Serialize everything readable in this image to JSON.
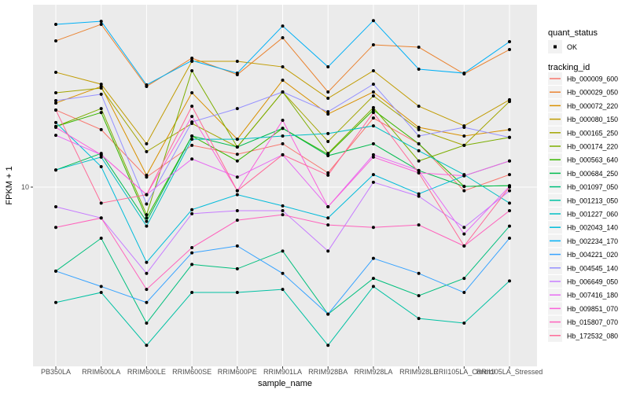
{
  "figure": {
    "background": "#FFFFFF",
    "panel_bg": "#EBEBEB",
    "grid_color": "#FFFFFF",
    "axis_text_color": "#4D4D4D",
    "title_text_color": "#000000",
    "point_color": "#000000"
  },
  "axes": {
    "x_title": "sample_name",
    "y_title": "FPKM + 1",
    "y_tick_labels": [
      "10"
    ],
    "y_tick_values": [
      10
    ]
  },
  "legend": {
    "quant_status_title": "quant_status",
    "quant_status_items": [
      {
        "label": "OK"
      }
    ],
    "tracking_id_title": "tracking_id"
  },
  "chart_data": {
    "type": "line",
    "title": "",
    "xlabel": "sample_name",
    "ylabel": "FPKM + 1",
    "yscale": "log10",
    "ylim": [
      1,
      120
    ],
    "grid": "ggplot-grey, major x per category, major y at 10",
    "legend_position": "right",
    "point_marker": "black dot (quant_status OK)",
    "categories": [
      "PB350LA",
      "RRIM600LA",
      "RRIM600LE",
      "RRIM600SE",
      "RRIM600PE",
      "RRIM901LA",
      "RRIM928BA",
      "RRIM928LA",
      "RRIM928LE",
      "RRII105LA_Control",
      "RRII105LA_Stressed"
    ],
    "series": [
      {
        "name": "Hb_000009_600",
        "color": "#F8766D",
        "values": [
          29.3,
          22.3,
          11.5,
          17.9,
          15.8,
          18.3,
          12.2,
          26.2,
          18.3,
          9.5,
          11.9
        ]
      },
      {
        "name": "Hb_000029_050",
        "color": "#EA8331",
        "values": [
          76.9,
          96.8,
          40.7,
          60.4,
          48.0,
          80.3,
          37.7,
          72.8,
          70.4,
          48.5,
          68.1
        ]
      },
      {
        "name": "Hb_000072_220",
        "color": "#D89000",
        "values": [
          32.3,
          40.7,
          11.8,
          37.3,
          19.5,
          44.4,
          27.7,
          37.7,
          23.0,
          20.4,
          22.3
        ]
      },
      {
        "name": "Hb_000080_150",
        "color": "#C09B00",
        "values": [
          49.6,
          42.0,
          18.3,
          57.8,
          57.8,
          53.5,
          34.5,
          50.7,
          30.9,
          23.5,
          33.8
        ]
      },
      {
        "name": "Hb_000165_250",
        "color": "#A3A500",
        "values": [
          37.3,
          39.8,
          16.4,
          24.3,
          17.5,
          37.7,
          18.9,
          35.7,
          22.3,
          17.9,
          33.0
        ]
      },
      {
        "name": "Hb_000174_220",
        "color": "#7CAE00",
        "values": [
          23.3,
          29.9,
          6.8,
          50.7,
          17.5,
          37.7,
          16.0,
          30.3,
          14.4,
          17.9,
          20.0
        ]
      },
      {
        "name": "Hb_000563_640",
        "color": "#39B600",
        "values": [
          23.3,
          28.3,
          6.5,
          20.4,
          14.4,
          22.7,
          15.8,
          29.3,
          18.3,
          10.1,
          10.2
        ]
      },
      {
        "name": "Hb_000684_250",
        "color": "#00BB4E",
        "values": [
          12.7,
          16.0,
          6.2,
          20.4,
          17.5,
          22.7,
          15.5,
          18.3,
          12.6,
          10.1,
          10.2
        ]
      },
      {
        "name": "Hb_001097_050",
        "color": "#00BF7D",
        "values": [
          3.1,
          4.9,
          1.5,
          3.4,
          3.2,
          4.1,
          1.7,
          2.8,
          2.2,
          2.8,
          5.8
        ]
      },
      {
        "name": "Hb_001213_050",
        "color": "#00C1A3",
        "values": [
          2.0,
          2.3,
          1.1,
          2.3,
          2.3,
          2.4,
          1.1,
          2.5,
          1.6,
          1.5,
          2.7
        ]
      },
      {
        "name": "Hb_001227_060",
        "color": "#00BFC4",
        "values": [
          12.7,
          15.2,
          5.8,
          19.5,
          19.5,
          20.4,
          21.1,
          23.5,
          16.6,
          11.9,
          8.0
        ]
      },
      {
        "name": "Hb_002043_140",
        "color": "#00BBDA",
        "values": [
          24.6,
          13.3,
          3.5,
          7.3,
          9.0,
          7.7,
          6.5,
          11.9,
          9.1,
          11.7,
          14.4
        ]
      },
      {
        "name": "Hb_002234_170",
        "color": "#00B0F6",
        "values": [
          96.8,
          101.0,
          41.6,
          58.4,
          49.0,
          94.6,
          53.5,
          102.0,
          51.8,
          49.0,
          76.0
        ]
      },
      {
        "name": "Hb_004221_020",
        "color": "#35A2FF",
        "values": [
          3.1,
          2.5,
          2.0,
          4.0,
          4.4,
          3.0,
          1.7,
          3.7,
          3.0,
          2.3,
          4.9
        ]
      },
      {
        "name": "Hb_004545_140",
        "color": "#9590FF",
        "values": [
          33.4,
          36.5,
          7.9,
          24.8,
          29.9,
          37.7,
          28.6,
          42.0,
          20.4,
          23.0,
          20.0
        ]
      },
      {
        "name": "Hb_006649_050",
        "color": "#C77CFF",
        "values": [
          7.6,
          6.5,
          3.0,
          6.9,
          7.2,
          7.2,
          4.1,
          10.7,
          8.8,
          5.7,
          9.5
        ]
      },
      {
        "name": "Hb_007416_180",
        "color": "#E76BF3",
        "values": [
          20.6,
          15.7,
          9.0,
          14.8,
          11.5,
          15.7,
          7.6,
          15.7,
          12.6,
          5.2,
          10.1
        ]
      },
      {
        "name": "Hb_009851_070",
        "color": "#FA62DB",
        "values": [
          23.0,
          15.7,
          9.0,
          26.8,
          9.5,
          25.4,
          7.6,
          15.2,
          12.2,
          11.7,
          14.4
        ]
      },
      {
        "name": "Hb_015807_070",
        "color": "#FF62BC",
        "values": [
          5.7,
          6.5,
          2.4,
          4.3,
          6.3,
          6.8,
          5.9,
          5.7,
          5.9,
          4.4,
          7.2
        ]
      },
      {
        "name": "Hb_172532_080",
        "color": "#FF6A98",
        "values": [
          29.3,
          8.0,
          9.0,
          30.9,
          9.5,
          15.7,
          11.8,
          28.3,
          12.2,
          4.4,
          10.0
        ]
      }
    ]
  }
}
